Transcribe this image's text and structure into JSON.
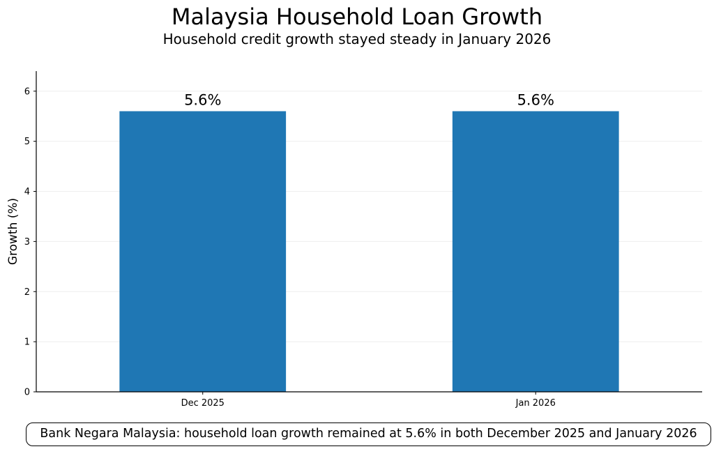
{
  "chart_data": {
    "type": "bar",
    "title": "Malaysia Household Loan Growth",
    "subtitle": "Household credit growth stayed steady in January 2026",
    "categories": [
      "Dec 2025",
      "Jan 2026"
    ],
    "values": [
      5.6,
      5.6
    ],
    "data_labels": [
      "5.6%",
      "5.6%"
    ],
    "xlabel": "",
    "ylabel": "Growth (%)",
    "ylim": [
      0,
      6.4
    ],
    "yticks": [
      0,
      1,
      2,
      3,
      4,
      5,
      6
    ],
    "grid": "horizontal",
    "bar_color": "#1f77b4",
    "note": "Bank Negara Malaysia: household loan growth remained at 5.6% in both December 2025 and January 2026"
  }
}
